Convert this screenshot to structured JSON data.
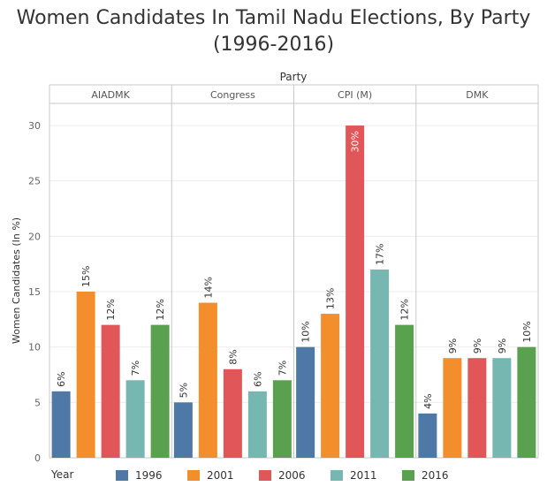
{
  "chart_data": {
    "type": "bar",
    "title": "Women Candidates In Tamil Nadu Elections, By Party (1996-2016)",
    "title_lines": [
      "Women Candidates In Tamil Nadu Elections, By Party",
      "(1996-2016)"
    ],
    "facet_label": "Party",
    "categories": [
      "AIADMK",
      "Congress",
      "CPI (M)",
      "DMK"
    ],
    "series": [
      {
        "name": "1996",
        "color": "#4e79a7",
        "values": [
          6,
          5,
          10,
          4
        ]
      },
      {
        "name": "2001",
        "color": "#f28e2b",
        "values": [
          15,
          14,
          13,
          9
        ]
      },
      {
        "name": "2006",
        "color": "#e15759",
        "values": [
          12,
          8,
          30,
          9
        ]
      },
      {
        "name": "2011",
        "color": "#76b7b2",
        "values": [
          7,
          6,
          17,
          9
        ]
      },
      {
        "name": "2016",
        "color": "#59a14f",
        "values": [
          12,
          7,
          12,
          10
        ]
      }
    ],
    "ylabel": "Women Candidates (In %)",
    "ylim": [
      0,
      32
    ],
    "yticks": [
      0,
      5,
      10,
      15,
      20,
      25,
      30
    ],
    "value_suffix": "%",
    "legend_title": "Year",
    "legend_position": "bottom",
    "grid": true
  }
}
